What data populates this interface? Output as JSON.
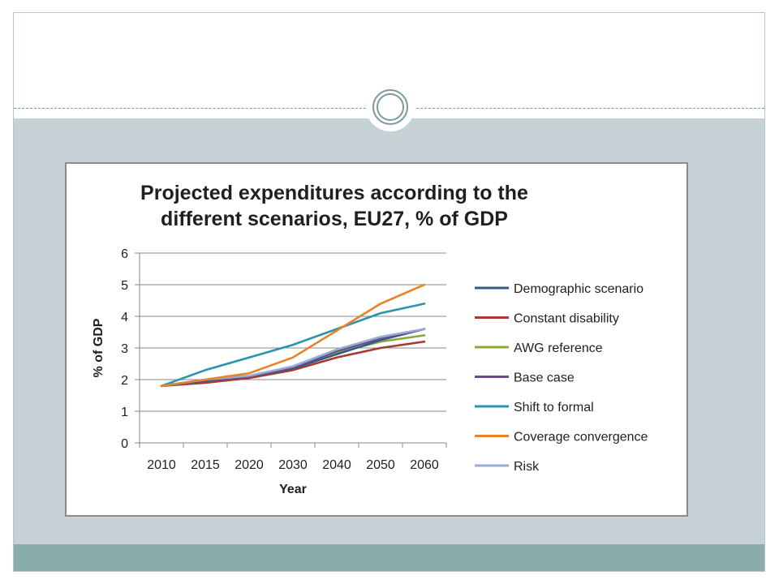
{
  "chart_data": {
    "type": "line",
    "title_lines": [
      "Projected expenditures according to the",
      "different scenarios, EU27, % of GDP"
    ],
    "xlabel": "Year",
    "ylabel": "% of GDP",
    "categories": [
      "2010",
      "2015",
      "2020",
      "2030",
      "2040",
      "2050",
      "2060"
    ],
    "ylim": [
      0,
      6
    ],
    "yticks": [
      "0",
      "1",
      "2",
      "3",
      "4",
      "5",
      "6"
    ],
    "grid": "horizontal",
    "legend_position": "right",
    "series": [
      {
        "name": "Demographic scenario",
        "color": "#2e5c8a",
        "values": [
          1.8,
          1.95,
          2.1,
          2.35,
          2.8,
          3.25,
          3.6
        ]
      },
      {
        "name": "Constant disability",
        "color": "#a83a32",
        "values": [
          1.8,
          1.9,
          2.05,
          2.3,
          2.7,
          3.0,
          3.2
        ]
      },
      {
        "name": "AWG reference",
        "color": "#8aa83a",
        "values": [
          1.8,
          1.95,
          2.1,
          2.35,
          2.85,
          3.2,
          3.4
        ]
      },
      {
        "name": "Base case",
        "color": "#6a4a8a",
        "values": [
          1.8,
          1.97,
          2.1,
          2.38,
          2.9,
          3.3,
          3.6
        ]
      },
      {
        "name": "Shift to formal",
        "color": "#2a93b0",
        "values": [
          1.8,
          2.3,
          2.7,
          3.1,
          3.6,
          4.1,
          4.4
        ]
      },
      {
        "name": "Coverage convergence",
        "color": "#e8832a",
        "values": [
          1.8,
          2.0,
          2.2,
          2.7,
          3.55,
          4.4,
          5.0
        ]
      },
      {
        "name": "Risk",
        "color": "#98acd6",
        "values": [
          1.8,
          2.0,
          2.12,
          2.42,
          2.95,
          3.35,
          3.6
        ]
      }
    ]
  }
}
